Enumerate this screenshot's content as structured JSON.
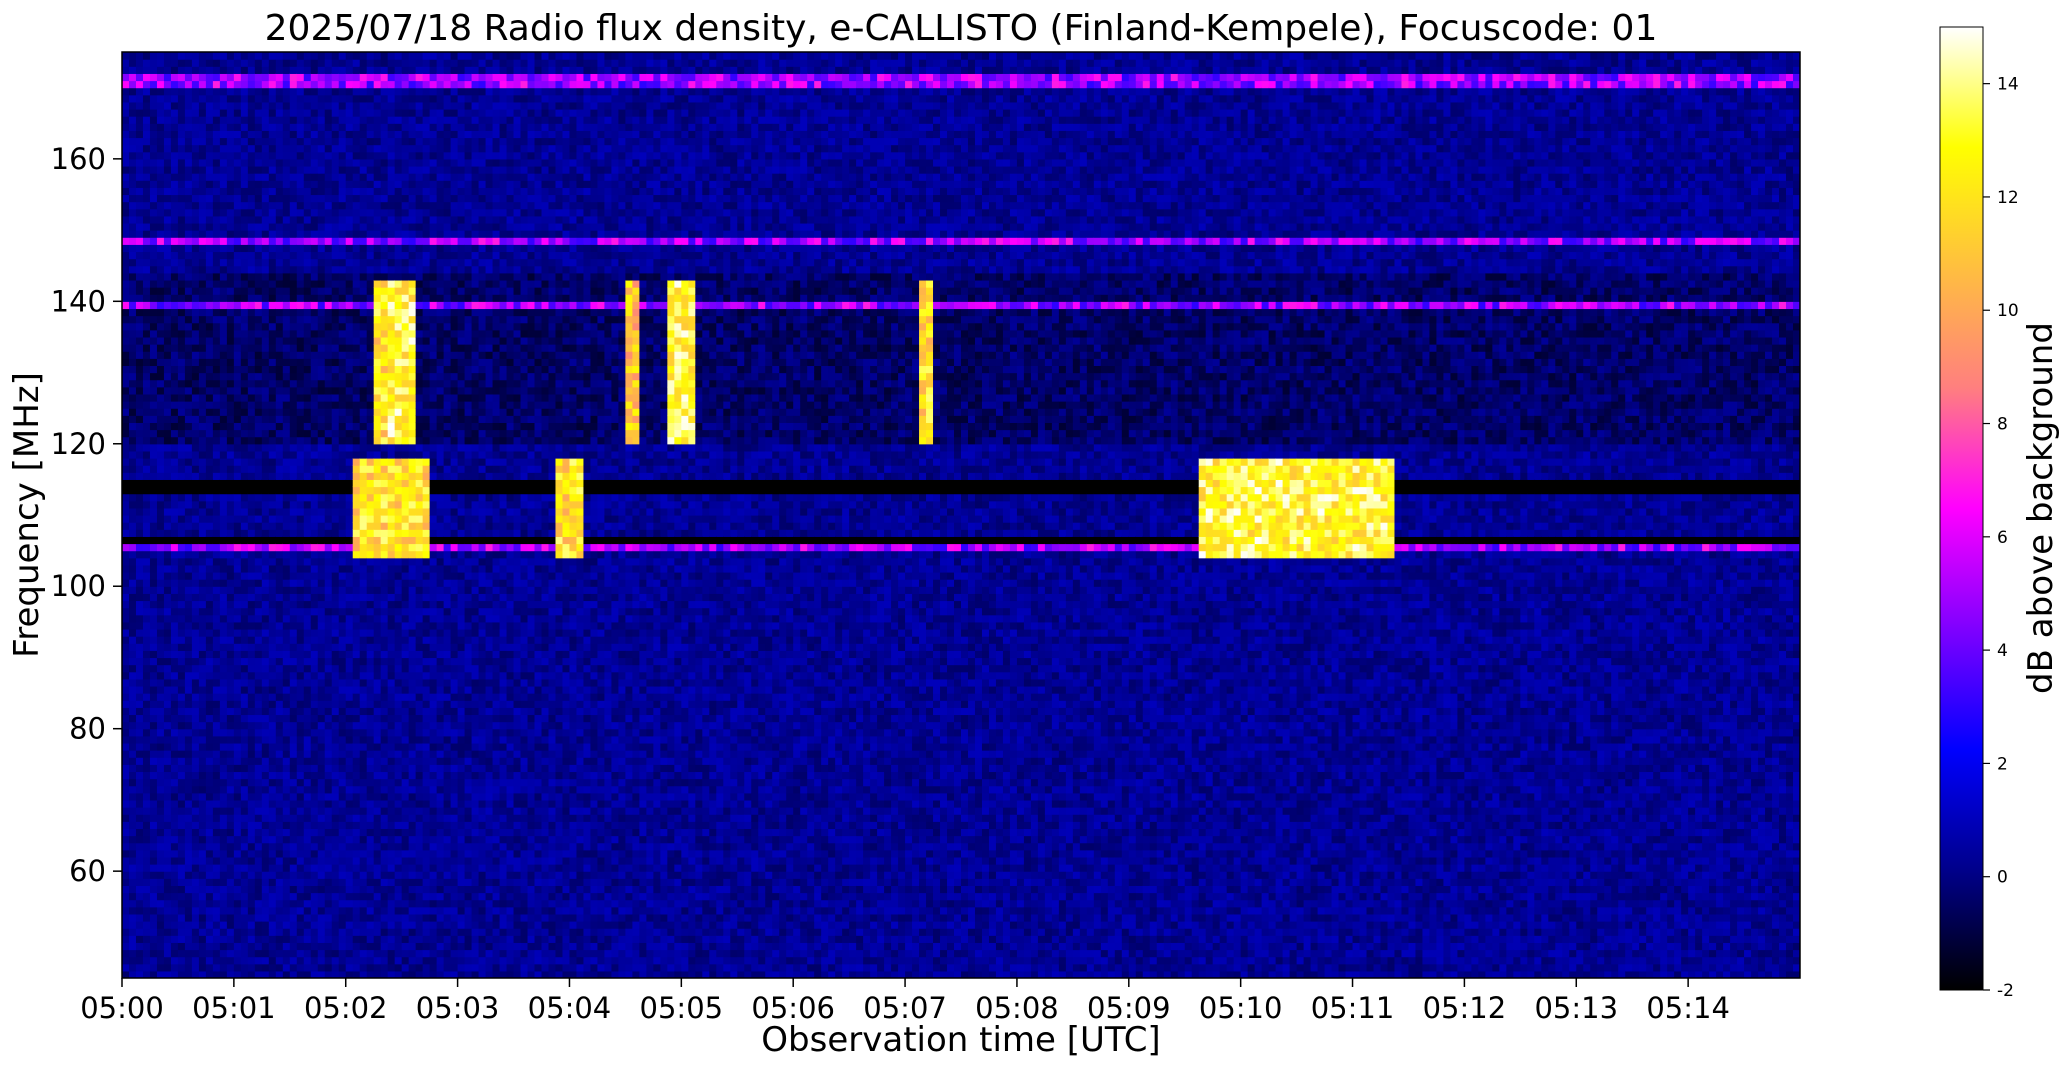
{
  "chart_data": {
    "type": "heatmap",
    "title": "2025/07/18  Radio flux density, e-CALLISTO (Finland-Kempele), Focuscode: 01",
    "xlabel": "Observation time [UTC]",
    "ylabel": "Frequency [MHz]",
    "colorbar_label": "dB above background",
    "x_ticks": [
      "05:00",
      "05:01",
      "05:02",
      "05:03",
      "05:04",
      "05:05",
      "05:06",
      "05:07",
      "05:08",
      "05:09",
      "05:10",
      "05:11",
      "05:12",
      "05:13",
      "05:14"
    ],
    "x_range_minutes": [
      0,
      15
    ],
    "y_ticks": [
      60,
      80,
      100,
      120,
      140,
      160
    ],
    "y_range": [
      45,
      175
    ],
    "colorbar_ticks": [
      -2,
      0,
      2,
      4,
      6,
      8,
      10,
      12,
      14
    ],
    "colorbar_range": [
      -2,
      15
    ],
    "colormap": "gnuplot2",
    "colormap_stops": [
      "#000000",
      "#00008b",
      "#0000ff",
      "#7f00ff",
      "#ff00ff",
      "#ff7f7f",
      "#ffbf3f",
      "#ffff00",
      "#ffffff"
    ],
    "grid": false,
    "bursts": [
      {
        "t": 2.3,
        "f": [
          120,
          143
        ],
        "db": 14,
        "w": 0.07
      },
      {
        "t": 2.5,
        "f": [
          120,
          143
        ],
        "db": 15,
        "w": 0.12
      },
      {
        "t": 4.55,
        "f": [
          120,
          143
        ],
        "db": 13,
        "w": 0.05
      },
      {
        "t": 5.0,
        "f": [
          120,
          143
        ],
        "db": 15,
        "w": 0.15
      },
      {
        "t": 7.2,
        "f": [
          120,
          143
        ],
        "db": 14,
        "w": 0.07
      },
      {
        "t": 10.5,
        "f": [
          104,
          118
        ],
        "db": 15,
        "w": 0.9
      },
      {
        "t": 2.4,
        "f": [
          104,
          118
        ],
        "db": 14,
        "w": 0.35
      },
      {
        "t": 4.0,
        "f": [
          104,
          118
        ],
        "db": 14,
        "w": 0.15
      }
    ],
    "steady_bands_mhz": [
      114,
      106,
      139.5,
      148.5,
      171
    ]
  }
}
